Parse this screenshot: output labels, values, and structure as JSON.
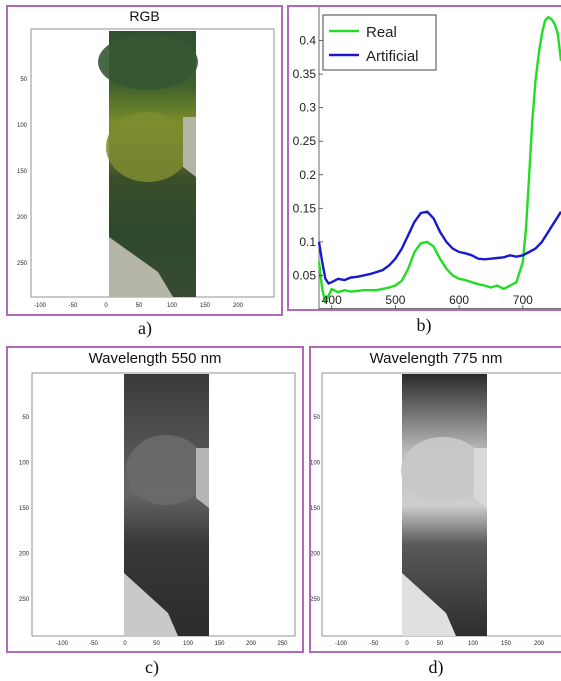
{
  "captions": {
    "a": "a)",
    "b": "b)",
    "c": "c)",
    "d": "d)"
  },
  "panels": {
    "a": {
      "title": "RGB",
      "x_ticks": [
        "-100",
        "-50",
        "0",
        "50",
        "100",
        "150",
        "200"
      ],
      "y_ticks": [
        "50",
        "100",
        "150",
        "200",
        "250"
      ]
    },
    "c": {
      "title": "Wavelength 550 nm",
      "x_ticks": [
        "-100",
        "-50",
        "0",
        "50",
        "100",
        "150",
        "200",
        "250"
      ],
      "y_ticks": [
        "50",
        "100",
        "150",
        "200",
        "250"
      ]
    },
    "d": {
      "title": "Wavelength 775 nm",
      "x_ticks": [
        "-100",
        "-50",
        "0",
        "50",
        "100",
        "150",
        "200"
      ],
      "y_ticks": [
        "50",
        "100",
        "150",
        "200",
        "250"
      ]
    }
  },
  "chart_data": {
    "type": "line",
    "title": "",
    "xlabel": "",
    "ylabel": "",
    "xlim": [
      380,
      760
    ],
    "ylim": [
      0,
      0.45
    ],
    "x_ticks": [
      400,
      500,
      600,
      700
    ],
    "y_ticks": [
      0.05,
      0.1,
      0.15,
      0.2,
      0.25,
      0.3,
      0.35,
      0.4
    ],
    "y_tick_labels": [
      "0.05",
      "0.1",
      "0.15",
      "0.2",
      "0.25",
      "0.3",
      "0.35",
      "0.4"
    ],
    "x_tick_labels": [
      "400",
      "500",
      "600",
      "700"
    ],
    "legend": "top-left",
    "series": [
      {
        "name": "Real",
        "color": "#22dd22",
        "x": [
          380,
          385,
          390,
          395,
          400,
          410,
          420,
          430,
          440,
          450,
          460,
          470,
          480,
          490,
          500,
          510,
          520,
          530,
          540,
          550,
          560,
          570,
          580,
          590,
          600,
          610,
          620,
          630,
          640,
          650,
          660,
          670,
          680,
          690,
          700,
          705,
          710,
          715,
          720,
          725,
          730,
          735,
          740,
          745,
          750,
          755,
          760
        ],
        "y": [
          0.07,
          0.03,
          0.01,
          0.02,
          0.03,
          0.025,
          0.028,
          0.026,
          0.027,
          0.028,
          0.028,
          0.028,
          0.03,
          0.032,
          0.035,
          0.042,
          0.06,
          0.085,
          0.098,
          0.1,
          0.093,
          0.075,
          0.06,
          0.05,
          0.045,
          0.043,
          0.04,
          0.037,
          0.035,
          0.032,
          0.035,
          0.03,
          0.035,
          0.04,
          0.07,
          0.12,
          0.2,
          0.28,
          0.34,
          0.38,
          0.41,
          0.43,
          0.435,
          0.432,
          0.425,
          0.41,
          0.37
        ]
      },
      {
        "name": "Artificial",
        "color": "#1a1acc",
        "x": [
          380,
          385,
          390,
          395,
          400,
          410,
          420,
          430,
          440,
          450,
          460,
          470,
          480,
          490,
          500,
          510,
          520,
          530,
          540,
          550,
          560,
          570,
          580,
          590,
          600,
          610,
          620,
          630,
          640,
          650,
          660,
          670,
          680,
          690,
          700,
          710,
          720,
          730,
          740,
          750,
          760
        ],
        "y": [
          0.1,
          0.07,
          0.045,
          0.038,
          0.04,
          0.045,
          0.043,
          0.047,
          0.048,
          0.05,
          0.052,
          0.055,
          0.058,
          0.065,
          0.075,
          0.09,
          0.11,
          0.13,
          0.143,
          0.145,
          0.135,
          0.115,
          0.1,
          0.09,
          0.085,
          0.083,
          0.08,
          0.075,
          0.074,
          0.075,
          0.076,
          0.077,
          0.08,
          0.078,
          0.08,
          0.085,
          0.09,
          0.1,
          0.115,
          0.13,
          0.145
        ]
      }
    ]
  }
}
